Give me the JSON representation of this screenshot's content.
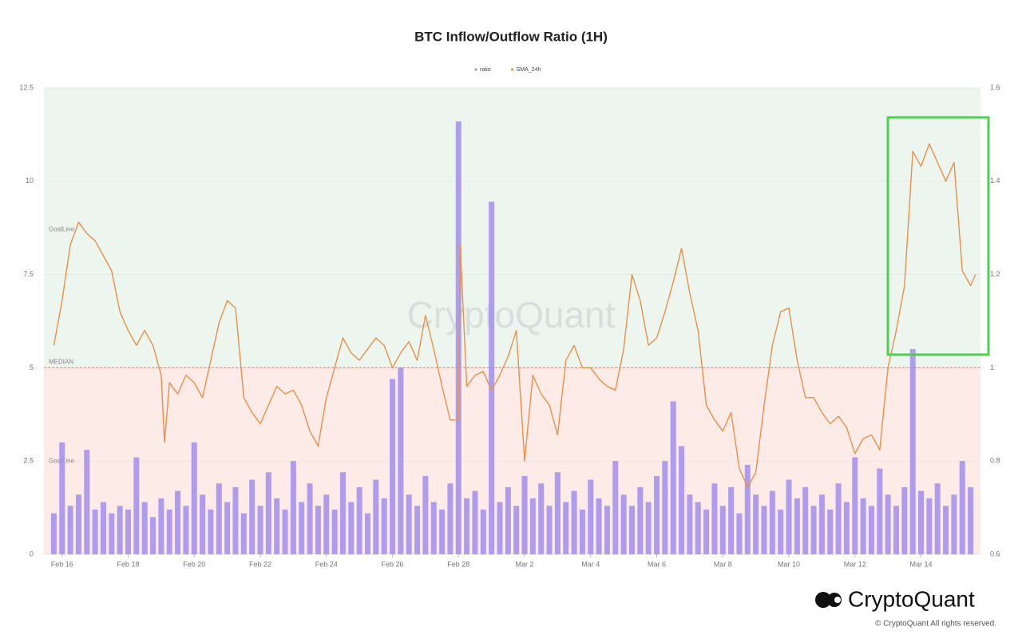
{
  "chart_data": {
    "type": "bar_line",
    "title": "BTC Inflow/Outflow Ratio (1H)",
    "watermark": "CryptoQuant",
    "xlim": [
      -0.55,
      27.8
    ],
    "xticks": [
      {
        "value": 0,
        "label": "Feb 16"
      },
      {
        "value": 2,
        "label": "Feb 18"
      },
      {
        "value": 4,
        "label": "Feb 20"
      },
      {
        "value": 6,
        "label": "Feb 22"
      },
      {
        "value": 8,
        "label": "Feb 24"
      },
      {
        "value": 10,
        "label": "Feb 26"
      },
      {
        "value": 12,
        "label": "Feb 28"
      },
      {
        "value": 14,
        "label": "Mar 2"
      },
      {
        "value": 16,
        "label": "Mar 4"
      },
      {
        "value": 18,
        "label": "Mar 6"
      },
      {
        "value": 20,
        "label": "Mar 8"
      },
      {
        "value": 22,
        "label": "Mar 10"
      },
      {
        "value": 24,
        "label": "Mar 12"
      },
      {
        "value": 26,
        "label": "Mar 14"
      }
    ],
    "ylim": [
      0,
      12.5
    ],
    "yticks": [
      0,
      2.5,
      5,
      7.5,
      10,
      12.5
    ],
    "y2lim": [
      0.6,
      1.6
    ],
    "y2ticks": [
      0.6,
      0.8,
      1,
      1.2,
      1.4,
      1.6
    ],
    "median": {
      "label": "MEDIAN",
      "value": 5,
      "above_color": "#ecf6ee",
      "below_color": "#fcebe6"
    },
    "goal_lines": [
      {
        "label": "GoalLine",
        "value": 8.7
      },
      {
        "label": "GoalLine",
        "value": 2.5
      }
    ],
    "series": [
      {
        "name": "ratio",
        "type": "bar",
        "color": "#a28ef0",
        "x": [
          -0.25,
          0,
          0.25,
          0.5,
          0.75,
          1,
          1.25,
          1.5,
          1.75,
          2,
          2.25,
          2.5,
          2.75,
          3,
          3.25,
          3.5,
          3.75,
          4,
          4.25,
          4.5,
          4.75,
          5,
          5.25,
          5.5,
          5.75,
          6,
          6.25,
          6.5,
          6.75,
          7,
          7.25,
          7.5,
          7.75,
          8,
          8.25,
          8.5,
          8.75,
          9,
          9.25,
          9.5,
          9.75,
          10,
          10.25,
          10.5,
          10.75,
          11,
          11.25,
          11.5,
          11.75,
          12,
          12.25,
          12.5,
          12.75,
          13,
          13.25,
          13.5,
          13.75,
          14,
          14.25,
          14.5,
          14.75,
          15,
          15.25,
          15.5,
          15.75,
          16,
          16.25,
          16.5,
          16.75,
          17,
          17.25,
          17.5,
          17.75,
          18,
          18.25,
          18.5,
          18.75,
          19,
          19.25,
          19.5,
          19.75,
          20,
          20.25,
          20.5,
          20.75,
          21,
          21.25,
          21.5,
          21.75,
          22,
          22.25,
          22.5,
          22.75,
          23,
          23.25,
          23.5,
          23.75,
          24,
          24.25,
          24.5,
          24.75,
          25,
          25.25,
          25.5,
          25.75,
          26,
          26.25,
          26.5,
          26.75,
          27,
          27.25,
          27.5
        ],
        "values": [
          1.1,
          3.0,
          1.3,
          1.6,
          2.8,
          1.2,
          1.4,
          1.1,
          1.3,
          1.2,
          2.6,
          1.4,
          1.0,
          1.5,
          1.2,
          1.7,
          1.3,
          3.0,
          1.6,
          1.2,
          1.9,
          1.4,
          1.8,
          1.1,
          2.0,
          1.3,
          2.2,
          1.5,
          1.2,
          2.5,
          1.4,
          1.9,
          1.3,
          1.6,
          1.2,
          2.2,
          1.4,
          1.8,
          1.1,
          2.0,
          1.5,
          4.7,
          5.0,
          1.6,
          1.3,
          2.1,
          1.4,
          1.2,
          1.9,
          11.6,
          1.5,
          1.7,
          1.2,
          9.45,
          1.4,
          1.8,
          1.3,
          2.1,
          1.5,
          1.9,
          1.3,
          2.2,
          1.4,
          1.7,
          1.2,
          2.0,
          1.5,
          1.3,
          2.5,
          1.6,
          1.3,
          1.8,
          1.4,
          2.1,
          2.5,
          4.1,
          2.9,
          1.6,
          1.4,
          1.2,
          1.9,
          1.3,
          1.8,
          1.1,
          2.4,
          1.6,
          1.3,
          1.7,
          1.2,
          2.0,
          1.5,
          1.8,
          1.3,
          1.6,
          1.2,
          1.9,
          1.4,
          2.6,
          1.5,
          1.3,
          2.3,
          1.6,
          1.3,
          1.8,
          5.5,
          1.7,
          1.5,
          1.9,
          1.3,
          1.6,
          2.5,
          1.8
        ]
      },
      {
        "name": "SMA_24h",
        "type": "line",
        "axis": "y2",
        "color": "#ea9048",
        "x": [
          -0.25,
          0,
          0.25,
          0.5,
          0.75,
          1,
          1.25,
          1.5,
          1.75,
          2,
          2.25,
          2.5,
          2.75,
          3,
          3.1,
          3.25,
          3.5,
          3.75,
          4,
          4.25,
          4.5,
          4.75,
          5,
          5.25,
          5.5,
          5.75,
          6,
          6.25,
          6.5,
          6.75,
          7,
          7.25,
          7.5,
          7.75,
          8,
          8.25,
          8.5,
          8.75,
          9,
          9.25,
          9.5,
          9.75,
          10,
          10.25,
          10.5,
          10.75,
          11,
          11.25,
          11.5,
          11.75,
          12,
          12.05,
          12.25,
          12.5,
          12.75,
          13,
          13.25,
          13.5,
          13.75,
          14,
          14.25,
          14.5,
          14.75,
          15,
          15.25,
          15.5,
          15.75,
          16,
          16.25,
          16.5,
          16.75,
          17,
          17.25,
          17.5,
          17.75,
          18,
          18.25,
          18.5,
          18.75,
          19,
          19.25,
          19.5,
          19.75,
          20,
          20.25,
          20.5,
          20.75,
          21,
          21.25,
          21.5,
          21.75,
          22,
          22.25,
          22.5,
          22.75,
          23,
          23.25,
          23.5,
          23.75,
          24,
          24.25,
          24.5,
          24.75,
          25,
          25.25,
          25.5,
          25.75,
          26,
          26.25,
          26.5,
          26.75,
          27,
          27.25,
          27.5,
          27.65
        ],
        "values": [
          1.048,
          1.144,
          1.264,
          1.312,
          1.288,
          1.272,
          1.24,
          1.208,
          1.12,
          1.08,
          1.048,
          1.08,
          1.048,
          0.984,
          0.84,
          0.968,
          0.944,
          0.984,
          0.968,
          0.936,
          1.016,
          1.096,
          1.144,
          1.128,
          0.936,
          0.904,
          0.88,
          0.92,
          0.96,
          0.944,
          0.952,
          0.92,
          0.864,
          0.832,
          0.936,
          1.0,
          1.064,
          1.032,
          1.016,
          1.04,
          1.064,
          1.048,
          1.0,
          1.032,
          1.056,
          1.016,
          1.112,
          1.04,
          0.96,
          0.888,
          0.888,
          1.264,
          0.96,
          0.984,
          0.992,
          0.952,
          0.984,
          1.024,
          1.08,
          0.8,
          0.984,
          0.944,
          0.92,
          0.856,
          1.016,
          1.048,
          1.0,
          1.0,
          0.976,
          0.96,
          0.952,
          1.04,
          1.2,
          1.144,
          1.048,
          1.064,
          1.12,
          1.184,
          1.256,
          1.16,
          1.08,
          0.92,
          0.888,
          0.864,
          0.904,
          0.784,
          0.744,
          0.776,
          0.92,
          1.048,
          1.12,
          1.128,
          1.016,
          0.936,
          0.936,
          0.904,
          0.88,
          0.896,
          0.872,
          0.816,
          0.848,
          0.856,
          0.824,
          1.0,
          1.08,
          1.176,
          1.464,
          1.432,
          1.48,
          1.44,
          1.4,
          1.44,
          1.208,
          1.176,
          1.2
        ]
      }
    ]
  },
  "footer": {
    "brand": "CryptoQuant",
    "copyright": "© CryptoQuant All rights reserved."
  }
}
